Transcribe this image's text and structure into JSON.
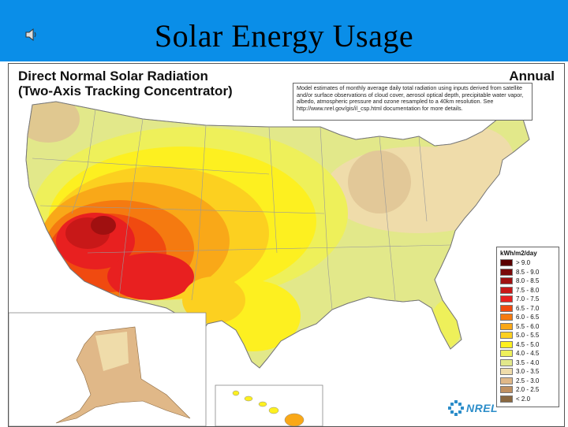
{
  "slide": {
    "title": "Solar Energy Usage",
    "header_color": "#0a8ee8",
    "speaker_icon": "speaker-icon"
  },
  "map": {
    "title_line1": "Direct Normal Solar Radiation",
    "title_line2": "(Two-Axis Tracking Concentrator)",
    "period": "Annual",
    "note": "Model estimates of monthly average daily total radiation using inputs derived from satellite and/or surface observations of cloud cover, aerosol optical depth, precipitable water vapor, albedo, atmospheric pressure and ozone resampled to a 40km resolution.  See http://www.nrel.gov/gis/il_csp.html documentation for more details.",
    "legend": {
      "title": "kWh/m2/day",
      "items": [
        {
          "label": "> 9.0",
          "color": "#5a0000"
        },
        {
          "label": "8.5 - 9.0",
          "color": "#7a0a0a"
        },
        {
          "label": "8.0 - 8.5",
          "color": "#a01010"
        },
        {
          "label": "7.5 - 8.0",
          "color": "#c81818"
        },
        {
          "label": "7.0 - 7.5",
          "color": "#e82020"
        },
        {
          "label": "6.5 - 7.0",
          "color": "#f04a10"
        },
        {
          "label": "6.0 - 6.5",
          "color": "#f57a10"
        },
        {
          "label": "5.5 - 6.0",
          "color": "#f9a818"
        },
        {
          "label": "5.0 - 5.5",
          "color": "#fcd020"
        },
        {
          "label": "4.5 - 5.0",
          "color": "#fdf020"
        },
        {
          "label": "4.0 - 4.5",
          "color": "#eef05a"
        },
        {
          "label": "3.5 - 4.0",
          "color": "#e2e88a"
        },
        {
          "label": "3.0 - 3.5",
          "color": "#efdcaa"
        },
        {
          "label": "2.5 - 3.0",
          "color": "#e0b888"
        },
        {
          "label": "2.0 - 2.5",
          "color": "#c09060"
        },
        {
          "label": "< 2.0",
          "color": "#8a6840"
        }
      ]
    },
    "logo_text": "NREL"
  }
}
